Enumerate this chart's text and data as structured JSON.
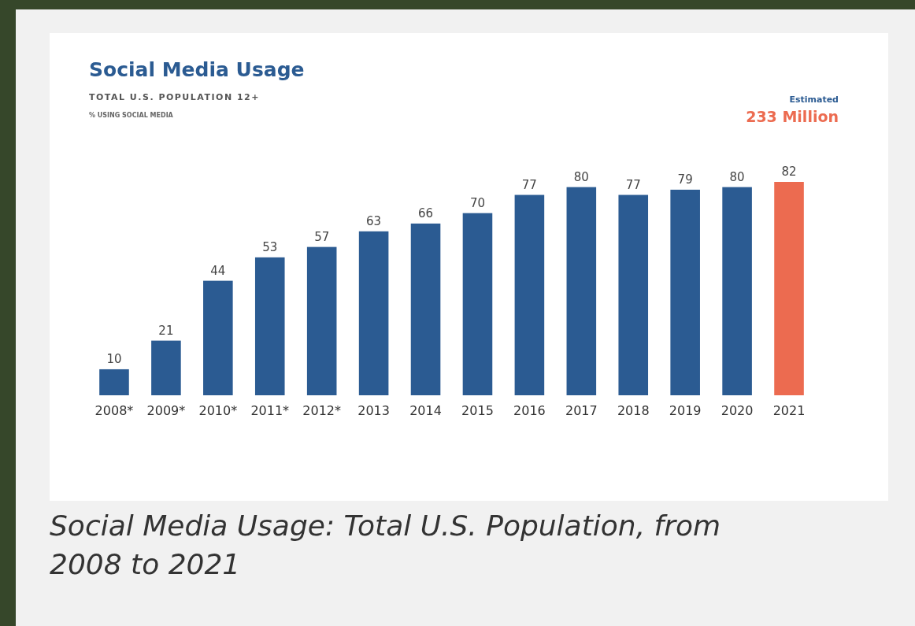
{
  "chart_data": {
    "type": "bar",
    "title": "Social Media Usage",
    "subtitle": "TOTAL U.S. POPULATION 12+",
    "categories": [
      "2008*",
      "2009*",
      "2010*",
      "2011*",
      "2012*",
      "2013",
      "2014",
      "2015",
      "2016",
      "2017",
      "2018",
      "2019",
      "2020",
      "2021"
    ],
    "values": [
      10,
      21,
      44,
      53,
      57,
      63,
      66,
      70,
      77,
      80,
      77,
      79,
      80,
      82
    ],
    "colors": [
      "#2b5b92",
      "#2b5b92",
      "#2b5b92",
      "#2b5b92",
      "#2b5b92",
      "#2b5b92",
      "#2b5b92",
      "#2b5b92",
      "#2b5b92",
      "#2b5b92",
      "#2b5b92",
      "#2b5b92",
      "#2b5b92",
      "#ec6b50"
    ],
    "data_labels": true,
    "annotations": [
      "% USING SOCIAL MEDIA",
      "Estimated",
      "233 Million",
      "Social Media Usage: Total U.S. Population, from 2008 to 2021"
    ]
  }
}
